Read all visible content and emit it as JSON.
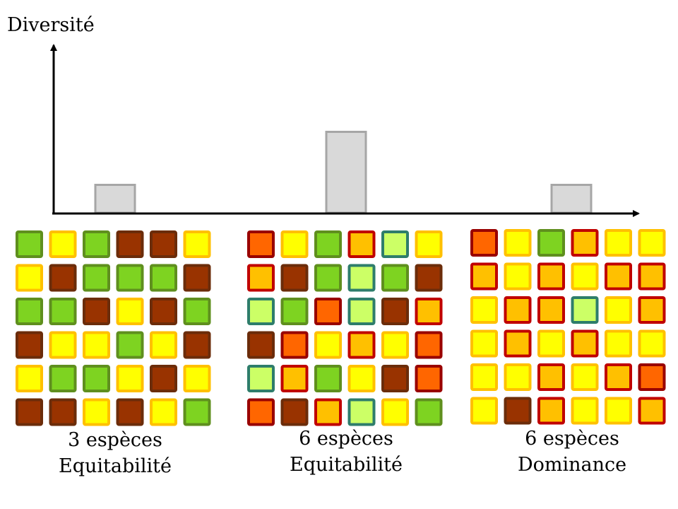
{
  "y_axis_label": "Diversité",
  "colors": {
    "G": {
      "fill": "#7ed321",
      "border": "#5f8f1e"
    },
    "B": {
      "fill": "#993300",
      "border": "#6b2c0a"
    },
    "Y": {
      "fill": "#ffff00",
      "border": "#ffc000"
    },
    "O": {
      "fill": "#ffc000",
      "border": "#c00000"
    },
    "R": {
      "fill": "#ff6600",
      "border": "#990000"
    },
    "L": {
      "fill": "#ccff66",
      "border": "#2e7d6b"
    },
    "bar_fill": "#d9d9d9",
    "bar_border": "#a6a6a6"
  },
  "chart_data": {
    "type": "bar",
    "categories": [
      "3 espèces Equitabilité",
      "6 espèces Equitabilité",
      "6 espèces Dominance"
    ],
    "values": [
      1,
      3,
      1
    ],
    "ylabel": "Diversité",
    "ylim": [
      0,
      5
    ]
  },
  "communities": [
    {
      "caption": [
        "3 espèces",
        "Equitabilité"
      ],
      "grid": [
        [
          "G",
          "Y",
          "G",
          "B",
          "B",
          "Y"
        ],
        [
          "Y",
          "B",
          "G",
          "G",
          "G",
          "B"
        ],
        [
          "G",
          "G",
          "B",
          "Y",
          "B",
          "G"
        ],
        [
          "B",
          "Y",
          "Y",
          "G",
          "Y",
          "B"
        ],
        [
          "Y",
          "G",
          "G",
          "Y",
          "B",
          "Y"
        ],
        [
          "B",
          "B",
          "Y",
          "B",
          "Y",
          "G"
        ]
      ]
    },
    {
      "caption": [
        "6 espèces",
        "Equitabilité"
      ],
      "grid": [
        [
          "R",
          "Y",
          "G",
          "O",
          "L",
          "Y"
        ],
        [
          "O",
          "B",
          "G",
          "L",
          "G",
          "B"
        ],
        [
          "L",
          "G",
          "R",
          "L",
          "B",
          "O"
        ],
        [
          "B",
          "R",
          "Y",
          "O",
          "Y",
          "R"
        ],
        [
          "L",
          "O",
          "G",
          "Y",
          "B",
          "R"
        ],
        [
          "R",
          "B",
          "O",
          "L",
          "Y",
          "G"
        ]
      ]
    },
    {
      "caption": [
        "6 espèces",
        "Dominance"
      ],
      "grid": [
        [
          "R",
          "Y",
          "G",
          "O",
          "Y",
          "Y"
        ],
        [
          "O",
          "Y",
          "O",
          "Y",
          "O",
          "O"
        ],
        [
          "Y",
          "O",
          "O",
          "L",
          "Y",
          "O"
        ],
        [
          "Y",
          "O",
          "Y",
          "O",
          "Y",
          "Y"
        ],
        [
          "Y",
          "Y",
          "O",
          "Y",
          "O",
          "R"
        ],
        [
          "Y",
          "B",
          "O",
          "Y",
          "Y",
          "O"
        ]
      ]
    }
  ]
}
